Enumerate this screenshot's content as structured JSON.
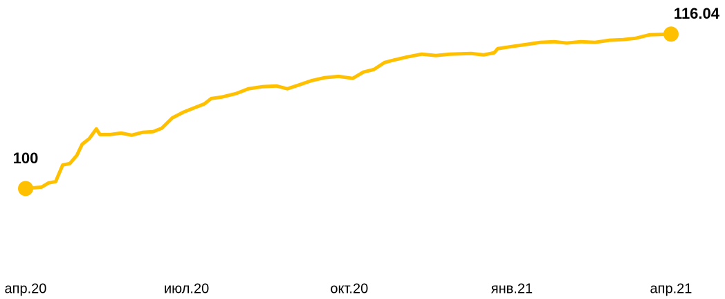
{
  "chart_data": {
    "type": "line",
    "x": [
      0,
      9,
      13,
      17,
      21,
      25,
      29,
      32,
      36,
      40,
      42,
      48,
      54,
      60,
      66,
      72,
      77,
      83,
      89,
      95,
      101,
      105,
      111,
      119,
      126,
      134,
      142,
      148,
      154,
      162,
      169,
      177,
      185,
      191,
      197,
      203,
      209,
      216,
      224,
      232,
      240,
      252,
      259,
      265,
      267,
      275,
      283,
      291,
      299,
      306,
      314,
      322,
      330,
      338,
      345,
      353,
      365
    ],
    "series": [
      {
        "name": null,
        "color": "#ffc000",
        "values": [
          100,
          100.14,
          100.58,
          100.72,
          102.45,
          102.59,
          103.45,
          104.6,
          105.18,
          106.19,
          105.61,
          105.61,
          105.76,
          105.54,
          105.83,
          105.9,
          106.26,
          107.34,
          107.91,
          108.35,
          108.78,
          109.35,
          109.5,
          109.86,
          110.36,
          110.58,
          110.65,
          110.36,
          110.72,
          111.22,
          111.51,
          111.65,
          111.44,
          112.09,
          112.37,
          113.09,
          113.38,
          113.67,
          113.96,
          113.81,
          113.96,
          114.03,
          113.88,
          114.1,
          114.53,
          114.75,
          114.96,
          115.18,
          115.25,
          115.11,
          115.25,
          115.18,
          115.4,
          115.47,
          115.61,
          115.97,
          116.04
        ]
      }
    ],
    "xlim": [
      0,
      365
    ],
    "xticks": [
      {
        "value": 0,
        "label": "апр.20"
      },
      {
        "value": 91,
        "label": "июл.20"
      },
      {
        "value": 183,
        "label": "окт.20"
      },
      {
        "value": 275,
        "label": "янв.21"
      },
      {
        "value": 365,
        "label": "апр.21"
      }
    ],
    "ylim": [
      96,
      118
    ]
  }
}
